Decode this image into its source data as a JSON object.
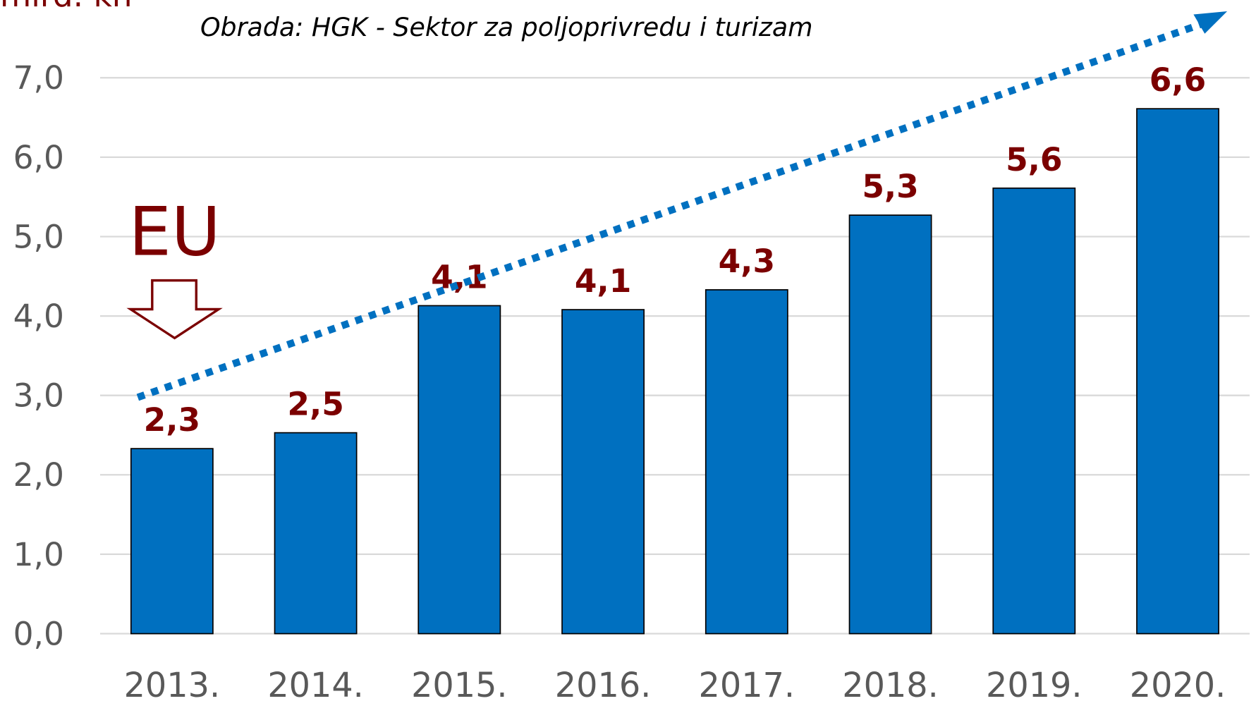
{
  "chart_data": {
    "type": "bar",
    "y_axis_label": "mlrd. kn",
    "subtitle": "Obrada: HGK - Sektor za poljoprivredu i turizam",
    "annotation": "EU",
    "categories": [
      "2013.",
      "2014.",
      "2015.",
      "2016.",
      "2017.",
      "2018.",
      "2019.",
      "2020."
    ],
    "values": [
      2.33,
      2.53,
      4.13,
      4.08,
      4.33,
      5.27,
      5.61,
      6.61
    ],
    "value_labels": [
      "2,3",
      "2,5",
      "4,1",
      "4,1",
      "4,3",
      "5,3",
      "5,6",
      "6,6"
    ],
    "color": "#0070c0",
    "ylim": [
      0,
      7
    ],
    "yticks": [
      {
        "value": 0,
        "label": "0,0"
      },
      {
        "value": 1,
        "label": "1,0"
      },
      {
        "value": 2,
        "label": "2,0"
      },
      {
        "value": 3,
        "label": "3,0"
      },
      {
        "value": 4,
        "label": "4,0"
      },
      {
        "value": 5,
        "label": "5,0"
      },
      {
        "value": 6,
        "label": "6,0"
      },
      {
        "value": 7,
        "label": "7,0"
      }
    ],
    "grid": true
  }
}
